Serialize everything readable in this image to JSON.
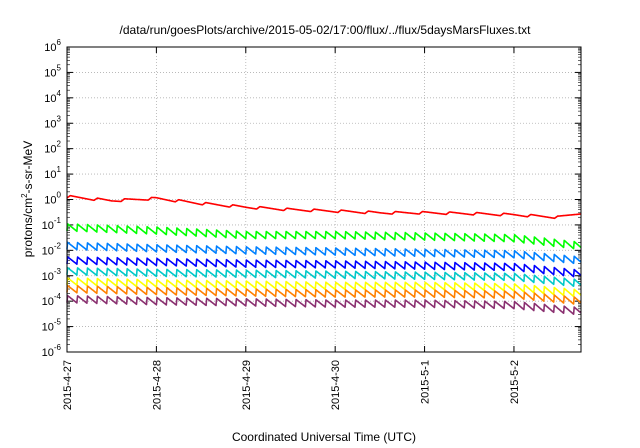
{
  "chart_data": {
    "type": "line",
    "title": "/data/run/goesPlots/archive/2015-05-02/17:00/flux/../flux/5daysMarsFluxes.txt",
    "xlabel": "Coordinated Universal Time (UTC)",
    "ylabel": "protons/cm2-s-sr-MeV",
    "y_scale": "log",
    "ylim": [
      1e-06,
      1000000.0
    ],
    "xlim": [
      "2015-04-27 00:00",
      "2015-05-02 18:00"
    ],
    "x_ticks": [
      "2015-4-27",
      "2015-4-28",
      "2015-4-29",
      "2015-4-30",
      "2015-5-1",
      "2015-5-2"
    ],
    "y_ticks": [
      {
        "base": "10",
        "exp": "-6"
      },
      {
        "base": "10",
        "exp": "-5"
      },
      {
        "base": "10",
        "exp": "-4"
      },
      {
        "base": "10",
        "exp": "-3"
      },
      {
        "base": "10",
        "exp": "-2"
      },
      {
        "base": "10",
        "exp": "-1"
      },
      {
        "base": "10",
        "exp": "0"
      },
      {
        "base": "10",
        "exp": "1"
      },
      {
        "base": "10",
        "exp": "2"
      },
      {
        "base": "10",
        "exp": "3"
      },
      {
        "base": "10",
        "exp": "4"
      },
      {
        "base": "10",
        "exp": "5"
      },
      {
        "base": "10",
        "exp": "6"
      }
    ],
    "grid": true,
    "legend": "none",
    "series": [
      {
        "color": "#ff0000",
        "x": [
          "2015-04-27 00:00",
          "2015-04-27 12:00",
          "2015-04-28 00:00",
          "2015-04-28 12:00",
          "2015-04-29 00:00",
          "2015-04-29 12:00",
          "2015-04-30 00:00",
          "2015-04-30 12:00",
          "2015-05-01 00:00",
          "2015-05-01 12:00",
          "2015-05-02 00:00",
          "2015-05-02 12:00",
          "2015-05-02 18:00"
        ],
        "y": [
          1.3,
          0.9,
          1.1,
          0.7,
          0.5,
          0.4,
          0.35,
          0.3,
          0.3,
          0.28,
          0.25,
          0.2,
          0.3
        ]
      },
      {
        "color": "#00ff00",
        "x": [
          "2015-04-27 00:00",
          "2015-04-28 00:00",
          "2015-04-29 00:00",
          "2015-04-30 00:00",
          "2015-05-01 00:00",
          "2015-05-02 00:00",
          "2015-05-02 18:00"
        ],
        "y": [
          0.08,
          0.06,
          0.04,
          0.04,
          0.035,
          0.03,
          0.015
        ]
      },
      {
        "color": "#0080ff",
        "x": [
          "2015-04-27 00:00",
          "2015-04-28 00:00",
          "2015-04-29 00:00",
          "2015-04-30 00:00",
          "2015-05-01 00:00",
          "2015-05-02 00:00",
          "2015-05-02 18:00"
        ],
        "y": [
          0.015,
          0.012,
          0.01,
          0.009,
          0.008,
          0.007,
          0.004
        ]
      },
      {
        "color": "#0000ff",
        "x": [
          "2015-04-27 00:00",
          "2015-04-28 00:00",
          "2015-04-29 00:00",
          "2015-04-30 00:00",
          "2015-05-01 00:00",
          "2015-05-02 00:00",
          "2015-05-02 18:00"
        ],
        "y": [
          0.004,
          0.0035,
          0.003,
          0.0028,
          0.0025,
          0.0022,
          0.0012
        ]
      },
      {
        "color": "#00c8c8",
        "x": [
          "2015-04-27 00:00",
          "2015-04-28 00:00",
          "2015-04-29 00:00",
          "2015-04-30 00:00",
          "2015-05-01 00:00",
          "2015-05-02 00:00",
          "2015-05-02 18:00"
        ],
        "y": [
          0.0015,
          0.0013,
          0.0012,
          0.0011,
          0.001,
          0.0009,
          0.0005
        ]
      },
      {
        "color": "#ffff00",
        "x": [
          "2015-04-27 00:00",
          "2015-04-28 00:00",
          "2015-04-29 00:00",
          "2015-04-30 00:00",
          "2015-05-01 00:00",
          "2015-05-02 00:00",
          "2015-05-02 18:00"
        ],
        "y": [
          0.0006,
          0.0005,
          0.00045,
          0.0004,
          0.0004,
          0.00035,
          0.0002
        ]
      },
      {
        "color": "#ff8000",
        "x": [
          "2015-04-27 00:00",
          "2015-04-28 00:00",
          "2015-04-29 00:00",
          "2015-04-30 00:00",
          "2015-05-01 00:00",
          "2015-05-02 00:00",
          "2015-05-02 18:00"
        ],
        "y": [
          0.0003,
          0.00025,
          0.00022,
          0.0002,
          0.0002,
          0.00018,
          0.0001
        ]
      },
      {
        "color": "#8a3070",
        "x": [
          "2015-04-27 00:00",
          "2015-04-28 00:00",
          "2015-04-29 00:00",
          "2015-04-30 00:00",
          "2015-05-01 00:00",
          "2015-05-02 00:00",
          "2015-05-02 18:00"
        ],
        "y": [
          0.00012,
          0.0001,
          9e-05,
          8e-05,
          8e-05,
          7e-05,
          4e-05
        ]
      }
    ]
  }
}
